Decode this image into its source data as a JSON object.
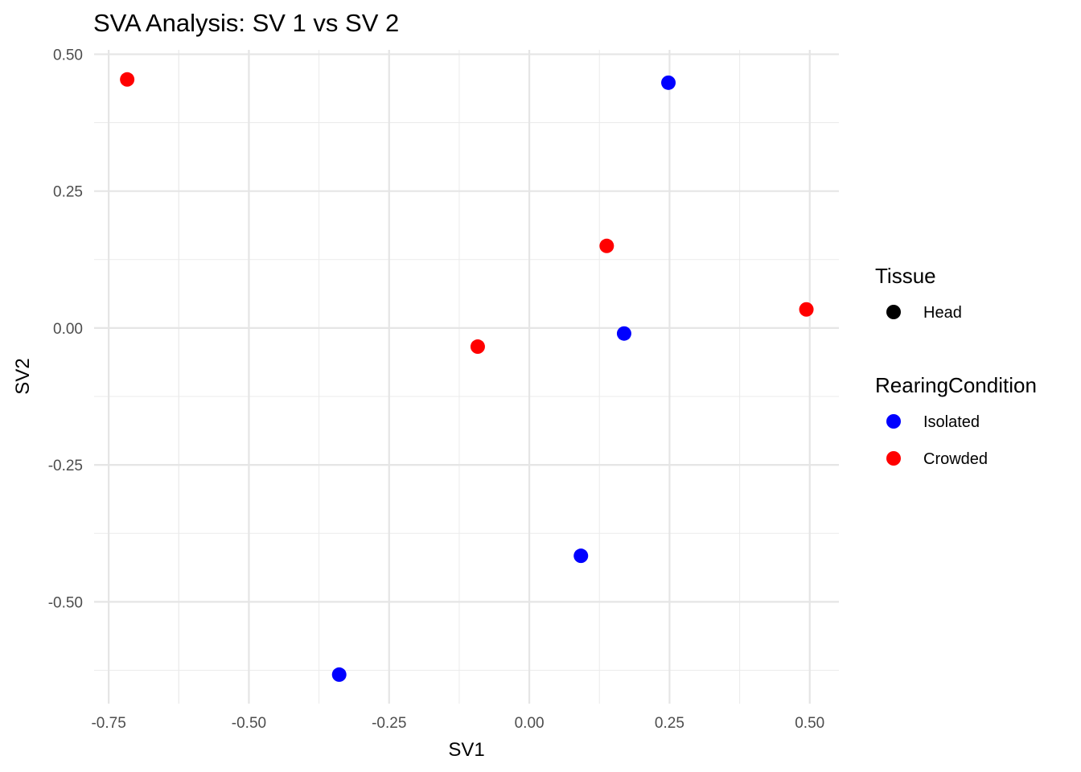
{
  "chart_data": {
    "type": "scatter",
    "title": "SVA Analysis: SV 1  vs SV 2",
    "xlabel": "SV1",
    "ylabel": "SV2",
    "xlim": [
      -0.776,
      0.552
    ],
    "ylim": [
      -0.686,
      0.508
    ],
    "grid": true,
    "xticks": [
      -0.75,
      -0.5,
      -0.25,
      0,
      0.25,
      0.5
    ],
    "xtick_labels": [
      "-0.75",
      "-0.50",
      "-0.25",
      "0.00",
      "0.25",
      "0.50"
    ],
    "yticks": [
      -0.5,
      -0.25,
      0,
      0.25,
      0.5
    ],
    "ytick_labels": [
      "-0.50",
      "-0.25",
      "0.00",
      "0.25",
      "0.50"
    ],
    "legend_position": "right",
    "legends": [
      {
        "title": "Tissue",
        "entries": [
          {
            "label": "Head",
            "color": "#000000"
          }
        ]
      },
      {
        "title": "RearingCondition",
        "entries": [
          {
            "label": "Isolated",
            "color": "#0000ff"
          },
          {
            "label": "Crowded",
            "color": "#ff0000"
          }
        ]
      }
    ],
    "series": [
      {
        "name": "Isolated",
        "color": "#0000ff",
        "points": [
          [
            0.248,
            0.448
          ],
          [
            0.169,
            -0.01
          ],
          [
            0.092,
            -0.416
          ],
          [
            -0.339,
            -0.633
          ]
        ]
      },
      {
        "name": "Crowded",
        "color": "#ff0000",
        "points": [
          [
            -0.717,
            0.454
          ],
          [
            0.138,
            0.15
          ],
          [
            0.494,
            0.034
          ],
          [
            -0.092,
            -0.034
          ]
        ]
      }
    ]
  }
}
